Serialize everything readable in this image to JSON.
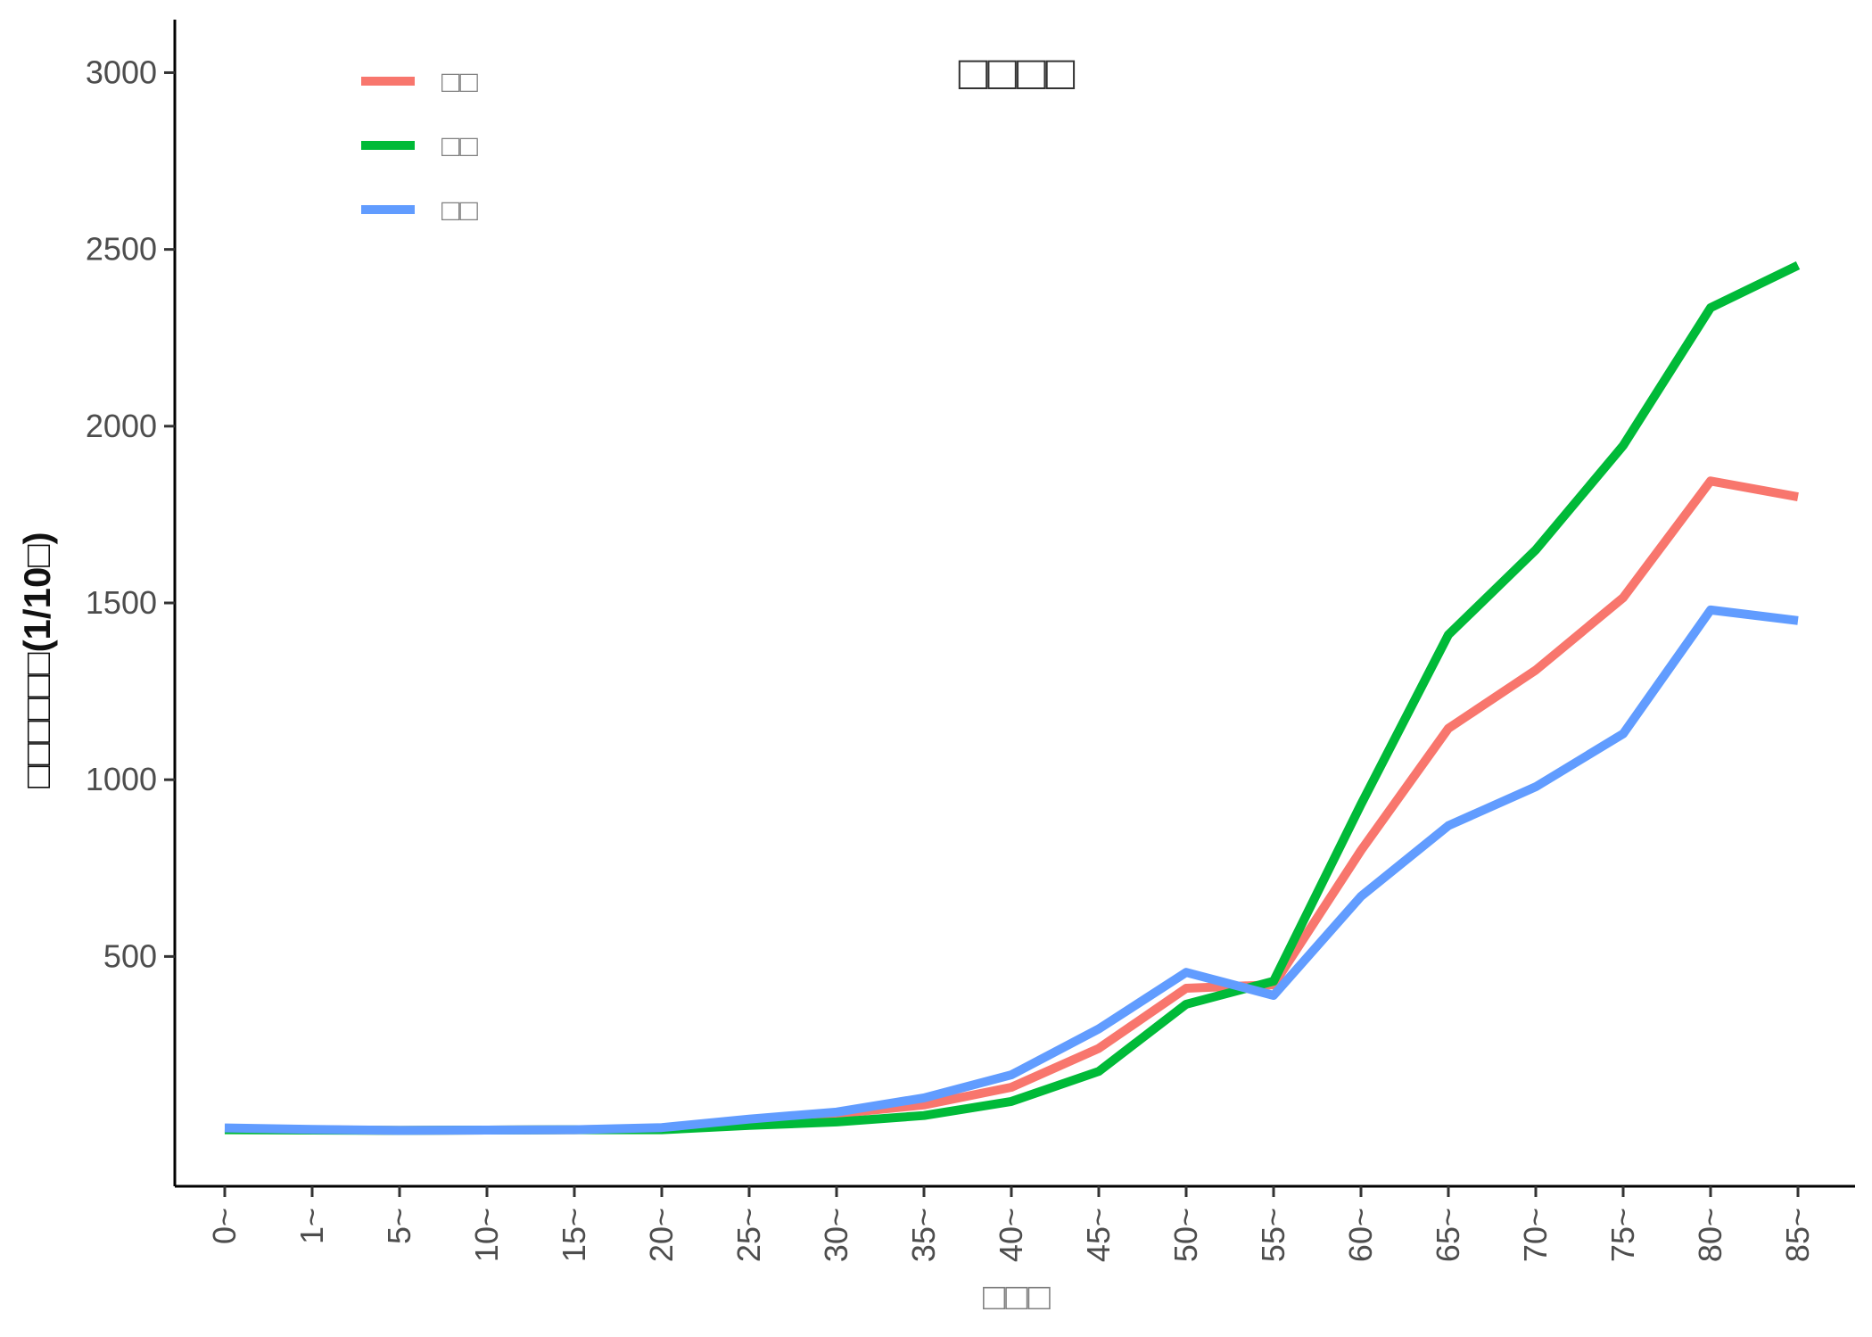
{
  "chart_data": {
    "type": "line",
    "title": "□□□□",
    "xlabel": "□□□",
    "ylabel": "□□□□□□(1/10□)",
    "categories": [
      "0~",
      "1~",
      "5~",
      "10~",
      "15~",
      "20~",
      "25~",
      "30~",
      "35~",
      "40~",
      "45~",
      "50~",
      "55~",
      "60~",
      "65~",
      "70~",
      "75~",
      "80~",
      "85~"
    ],
    "yticks": [
      500,
      1000,
      1500,
      2000,
      2500,
      3000
    ],
    "ylim": [
      -150,
      3150
    ],
    "legend_position": "top-left",
    "grid": false,
    "series": [
      {
        "name": "□□",
        "color": "#F8766D",
        "values": [
          12,
          10,
          8,
          9,
          10,
          13,
          35,
          55,
          80,
          130,
          240,
          410,
          420,
          800,
          1145,
          1310,
          1515,
          1845,
          1800
        ]
      },
      {
        "name": "□□",
        "color": "#00BA38",
        "values": [
          10,
          9,
          8,
          9,
          10,
          10,
          22,
          32,
          50,
          90,
          175,
          365,
          430,
          930,
          1410,
          1650,
          1945,
          2335,
          2455
        ]
      },
      {
        "name": "□□",
        "color": "#619CFF",
        "values": [
          15,
          11,
          8,
          9,
          10,
          16,
          40,
          60,
          100,
          165,
          295,
          455,
          390,
          670,
          870,
          980,
          1130,
          1480,
          1450
        ]
      }
    ]
  }
}
